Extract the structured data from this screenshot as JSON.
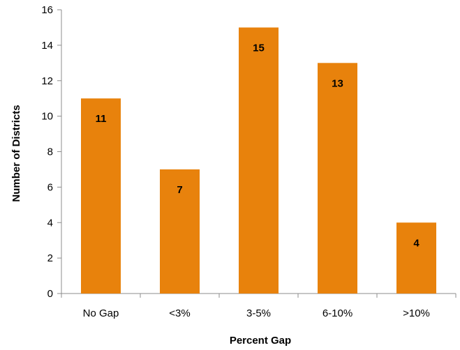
{
  "chart_data": {
    "type": "bar",
    "title": "",
    "xlabel": "Percent Gap",
    "ylabel": "Number of Districts",
    "categories": [
      "No Gap",
      "<3%",
      "3-5%",
      "6-10%",
      ">10%"
    ],
    "values": [
      11,
      7,
      15,
      13,
      4
    ],
    "data_labels": [
      "11",
      "7",
      "15",
      "13",
      "4"
    ],
    "ylim": [
      0,
      16
    ],
    "yticks": [
      "0",
      "2",
      "4",
      "6",
      "8",
      "10",
      "12",
      "14",
      "16"
    ],
    "grid": false,
    "legend": "none",
    "bar_color": "#e8820c"
  }
}
